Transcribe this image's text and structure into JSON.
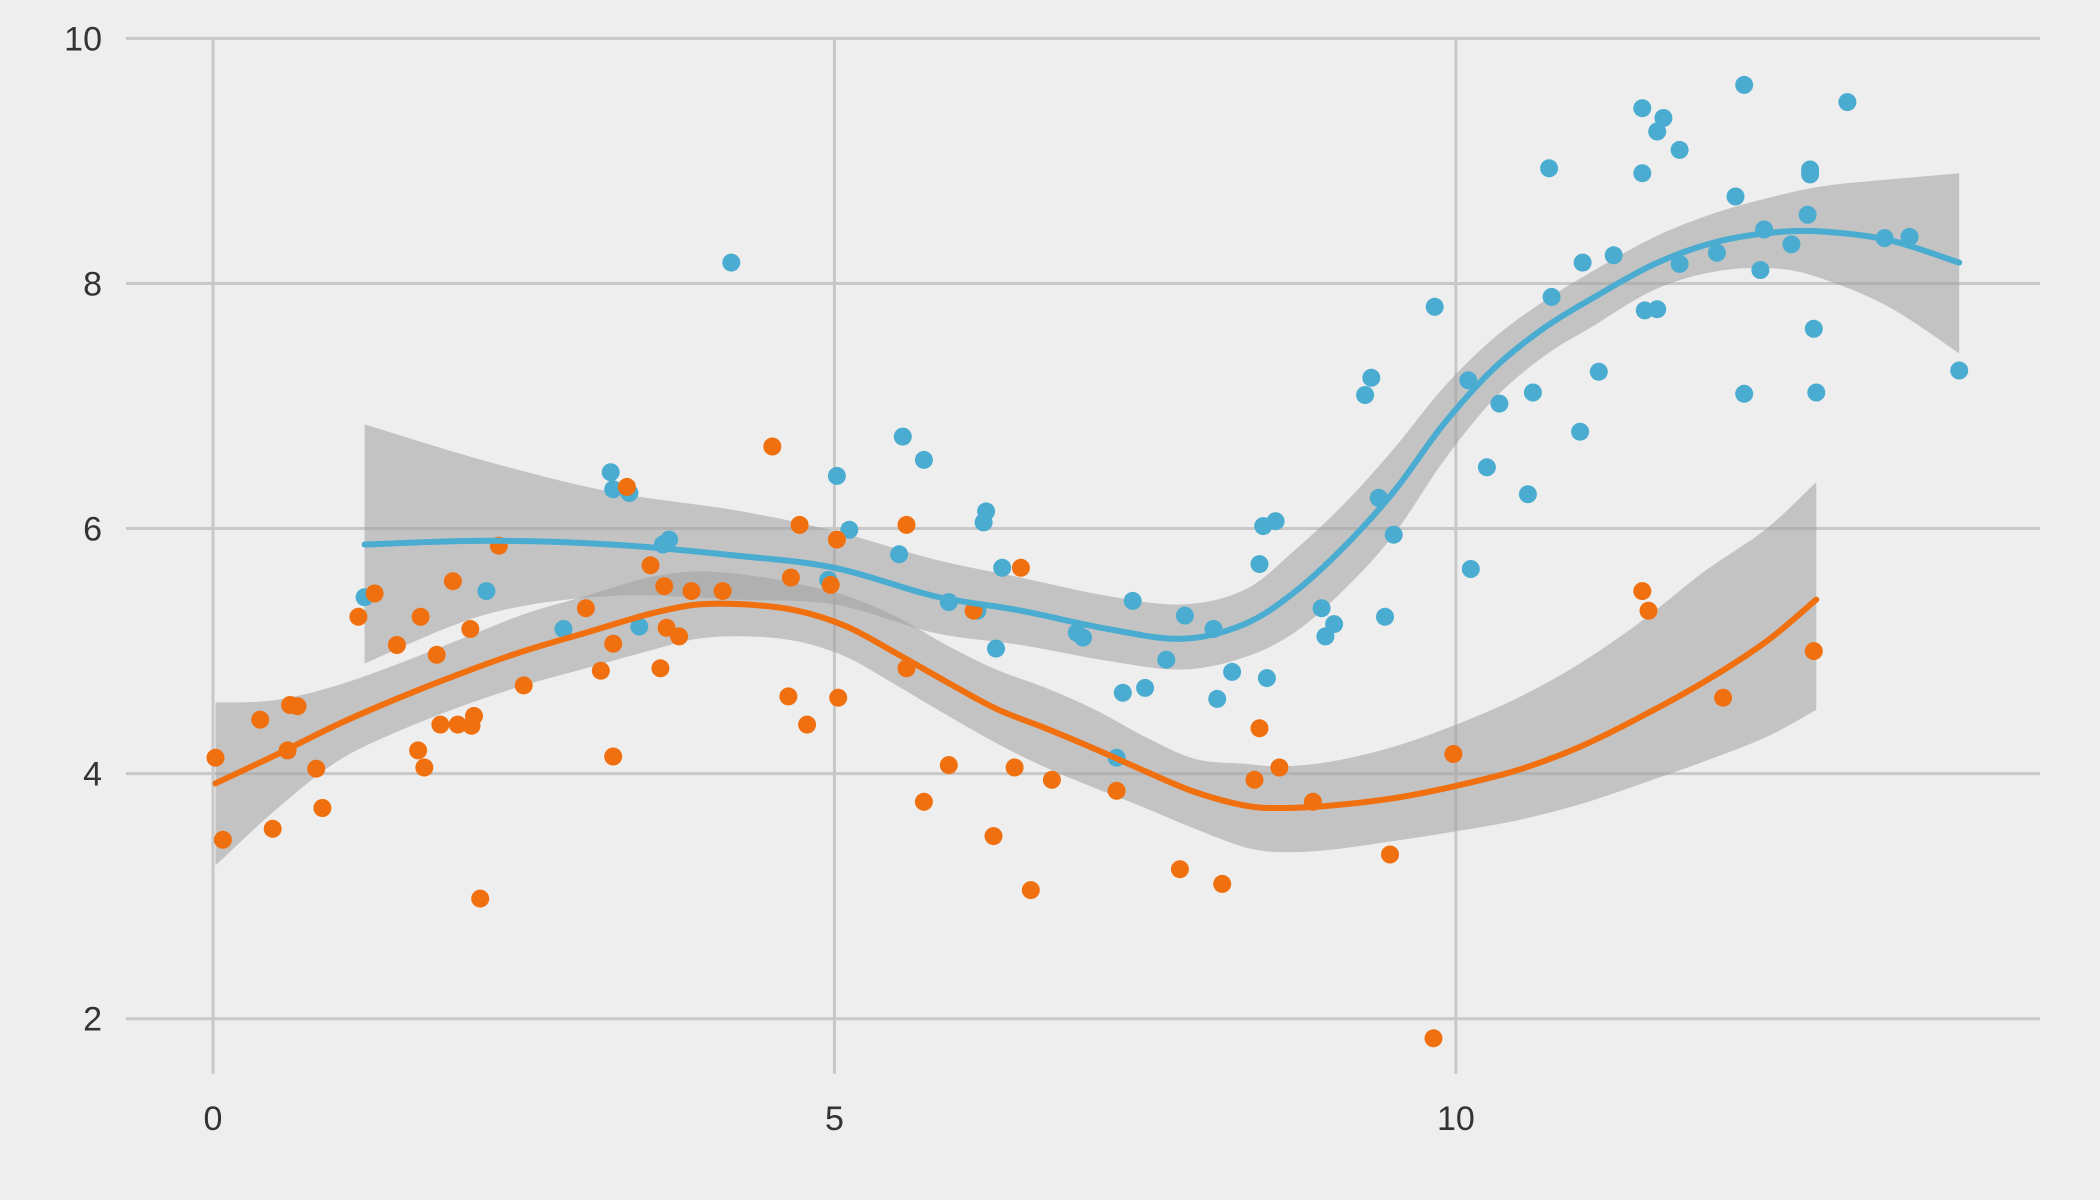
{
  "chart_data": {
    "type": "scatter",
    "title": "",
    "xlabel": "",
    "ylabel": "",
    "xlim": [
      -0.7,
      14.7
    ],
    "ylim": [
      1.5,
      10.15
    ],
    "xticks": [
      0,
      5,
      10
    ],
    "yticks": [
      2,
      4,
      6,
      8,
      10
    ],
    "xtick_labels": [
      "0",
      "5",
      "10"
    ],
    "ytick_labels": [
      "2",
      "4",
      "6",
      "8",
      "10"
    ],
    "grid": true,
    "legend": "none",
    "band_color": "#a0a0a0",
    "series": [
      {
        "color": "#4aacd0",
        "points": [
          [
            1.22,
            5.44
          ],
          [
            2.2,
            5.49
          ],
          [
            2.82,
            5.18
          ],
          [
            3.2,
            6.46
          ],
          [
            3.22,
            6.32
          ],
          [
            3.35,
            6.29
          ],
          [
            3.43,
            5.2
          ],
          [
            3.62,
            5.87
          ],
          [
            3.67,
            5.91
          ],
          [
            4.17,
            8.17
          ],
          [
            4.95,
            5.58
          ],
          [
            5.02,
            6.43
          ],
          [
            5.12,
            5.99
          ],
          [
            5.52,
            5.79
          ],
          [
            5.55,
            6.75
          ],
          [
            5.72,
            6.56
          ],
          [
            5.92,
            5.4
          ],
          [
            6.15,
            5.33
          ],
          [
            6.2,
            6.05
          ],
          [
            6.22,
            6.14
          ],
          [
            6.3,
            5.02
          ],
          [
            6.35,
            5.68
          ],
          [
            6.95,
            5.15
          ],
          [
            7.0,
            5.11
          ],
          [
            7.27,
            4.13
          ],
          [
            7.32,
            4.66
          ],
          [
            7.4,
            5.41
          ],
          [
            7.5,
            4.7
          ],
          [
            7.67,
            4.93
          ],
          [
            7.82,
            5.29
          ],
          [
            8.05,
            5.18
          ],
          [
            8.08,
            4.61
          ],
          [
            8.2,
            4.83
          ],
          [
            8.42,
            5.71
          ],
          [
            8.45,
            6.02
          ],
          [
            8.48,
            4.78
          ],
          [
            8.55,
            6.06
          ],
          [
            8.92,
            5.35
          ],
          [
            8.95,
            5.12
          ],
          [
            9.02,
            5.22
          ],
          [
            9.27,
            7.09
          ],
          [
            9.32,
            7.23
          ],
          [
            9.38,
            6.25
          ],
          [
            9.43,
            5.28
          ],
          [
            9.5,
            5.95
          ],
          [
            9.83,
            7.81
          ],
          [
            10.1,
            7.21
          ],
          [
            10.12,
            5.67
          ],
          [
            10.25,
            6.5
          ],
          [
            10.35,
            7.02
          ],
          [
            10.58,
            6.28
          ],
          [
            10.62,
            7.11
          ],
          [
            10.75,
            8.94
          ],
          [
            10.77,
            7.89
          ],
          [
            11.0,
            6.79
          ],
          [
            11.02,
            8.17
          ],
          [
            11.15,
            7.28
          ],
          [
            11.27,
            8.23
          ],
          [
            11.5,
            9.43
          ],
          [
            11.5,
            8.9
          ],
          [
            11.52,
            7.78
          ],
          [
            11.62,
            9.24
          ],
          [
            11.62,
            7.79
          ],
          [
            11.67,
            9.35
          ],
          [
            11.8,
            8.16
          ],
          [
            11.8,
            9.09
          ],
          [
            12.1,
            8.25
          ],
          [
            12.25,
            8.71
          ],
          [
            12.32,
            9.62
          ],
          [
            12.32,
            7.1
          ],
          [
            12.45,
            8.11
          ],
          [
            12.48,
            8.44
          ],
          [
            12.7,
            8.32
          ],
          [
            12.83,
            8.56
          ],
          [
            12.85,
            8.89
          ],
          [
            12.85,
            8.93
          ],
          [
            12.88,
            7.63
          ],
          [
            12.9,
            7.11
          ],
          [
            13.15,
            9.48
          ],
          [
            13.45,
            8.37
          ],
          [
            13.65,
            8.38
          ],
          [
            14.05,
            7.29
          ]
        ],
        "smooth": [
          [
            1.22,
            5.87
          ],
          [
            2.2,
            5.9
          ],
          [
            3.2,
            5.87
          ],
          [
            4.2,
            5.78
          ],
          [
            5.0,
            5.68
          ],
          [
            5.8,
            5.45
          ],
          [
            6.5,
            5.33
          ],
          [
            7.2,
            5.18
          ],
          [
            7.8,
            5.1
          ],
          [
            8.3,
            5.22
          ],
          [
            8.7,
            5.48
          ],
          [
            9.1,
            5.85
          ],
          [
            9.5,
            6.3
          ],
          [
            9.9,
            6.85
          ],
          [
            10.3,
            7.3
          ],
          [
            10.7,
            7.63
          ],
          [
            11.1,
            7.88
          ],
          [
            11.6,
            8.16
          ],
          [
            12.1,
            8.34
          ],
          [
            12.6,
            8.42
          ],
          [
            13.0,
            8.42
          ],
          [
            13.5,
            8.35
          ],
          [
            14.05,
            8.17
          ]
        ],
        "band_upper": [
          [
            1.22,
            6.85
          ],
          [
            2.2,
            6.55
          ],
          [
            3.2,
            6.3
          ],
          [
            4.2,
            6.15
          ],
          [
            5.0,
            5.98
          ],
          [
            5.8,
            5.75
          ],
          [
            6.5,
            5.6
          ],
          [
            7.2,
            5.45
          ],
          [
            7.8,
            5.38
          ],
          [
            8.3,
            5.5
          ],
          [
            8.7,
            5.82
          ],
          [
            9.1,
            6.2
          ],
          [
            9.5,
            6.65
          ],
          [
            9.9,
            7.15
          ],
          [
            10.3,
            7.55
          ],
          [
            10.7,
            7.85
          ],
          [
            11.1,
            8.1
          ],
          [
            11.6,
            8.38
          ],
          [
            12.1,
            8.58
          ],
          [
            12.6,
            8.72
          ],
          [
            13.0,
            8.8
          ],
          [
            13.5,
            8.85
          ],
          [
            14.05,
            8.9
          ]
        ],
        "band_lower": [
          [
            1.22,
            4.9
          ],
          [
            2.2,
            5.3
          ],
          [
            3.2,
            5.45
          ],
          [
            4.2,
            5.42
          ],
          [
            5.0,
            5.38
          ],
          [
            5.8,
            5.15
          ],
          [
            6.5,
            5.05
          ],
          [
            7.2,
            4.92
          ],
          [
            7.8,
            4.85
          ],
          [
            8.3,
            4.95
          ],
          [
            8.7,
            5.15
          ],
          [
            9.1,
            5.5
          ],
          [
            9.5,
            5.95
          ],
          [
            9.9,
            6.55
          ],
          [
            10.3,
            7.05
          ],
          [
            10.7,
            7.4
          ],
          [
            11.1,
            7.65
          ],
          [
            11.6,
            7.95
          ],
          [
            12.1,
            8.1
          ],
          [
            12.6,
            8.12
          ],
          [
            13.0,
            8.02
          ],
          [
            13.5,
            7.8
          ],
          [
            14.05,
            7.43
          ]
        ]
      },
      {
        "color": "#f0700f",
        "points": [
          [
            0.02,
            4.13
          ],
          [
            0.08,
            3.46
          ],
          [
            0.38,
            4.44
          ],
          [
            0.48,
            3.55
          ],
          [
            0.6,
            4.19
          ],
          [
            0.62,
            4.56
          ],
          [
            0.68,
            4.55
          ],
          [
            0.83,
            4.04
          ],
          [
            0.88,
            3.72
          ],
          [
            1.17,
            5.28
          ],
          [
            1.3,
            5.47
          ],
          [
            1.48,
            5.05
          ],
          [
            1.65,
            4.19
          ],
          [
            1.67,
            5.28
          ],
          [
            1.7,
            4.05
          ],
          [
            1.8,
            4.97
          ],
          [
            1.83,
            4.4
          ],
          [
            1.93,
            5.57
          ],
          [
            1.97,
            4.4
          ],
          [
            2.07,
            5.18
          ],
          [
            2.08,
            4.39
          ],
          [
            2.1,
            4.47
          ],
          [
            2.15,
            2.98
          ],
          [
            2.3,
            5.86
          ],
          [
            2.5,
            4.72
          ],
          [
            3.0,
            5.35
          ],
          [
            3.12,
            4.84
          ],
          [
            3.22,
            4.14
          ],
          [
            3.22,
            5.06
          ],
          [
            3.33,
            6.34
          ],
          [
            3.52,
            5.7
          ],
          [
            3.6,
            4.86
          ],
          [
            3.63,
            5.53
          ],
          [
            3.65,
            5.19
          ],
          [
            3.75,
            5.12
          ],
          [
            3.85,
            5.49
          ],
          [
            4.1,
            5.49
          ],
          [
            4.5,
            6.67
          ],
          [
            4.63,
            4.63
          ],
          [
            4.65,
            5.6
          ],
          [
            4.72,
            6.03
          ],
          [
            4.78,
            4.4
          ],
          [
            4.97,
            5.54
          ],
          [
            5.02,
            5.91
          ],
          [
            5.03,
            4.62
          ],
          [
            5.58,
            4.86
          ],
          [
            5.58,
            6.03
          ],
          [
            5.72,
            3.77
          ],
          [
            5.92,
            4.07
          ],
          [
            6.12,
            5.33
          ],
          [
            6.28,
            3.49
          ],
          [
            6.45,
            4.05
          ],
          [
            6.5,
            5.68
          ],
          [
            6.58,
            3.05
          ],
          [
            6.75,
            3.95
          ],
          [
            7.27,
            3.86
          ],
          [
            7.78,
            3.22
          ],
          [
            8.12,
            3.1
          ],
          [
            8.38,
            3.95
          ],
          [
            8.42,
            4.37
          ],
          [
            8.58,
            4.05
          ],
          [
            8.85,
            3.77
          ],
          [
            9.47,
            3.34
          ],
          [
            9.82,
            1.84
          ],
          [
            9.98,
            4.16
          ],
          [
            11.5,
            5.49
          ],
          [
            11.55,
            5.33
          ],
          [
            12.15,
            4.62
          ],
          [
            12.88,
            5.0
          ]
        ],
        "smooth": [
          [
            0.02,
            3.92
          ],
          [
            0.5,
            4.15
          ],
          [
            1.0,
            4.4
          ],
          [
            1.5,
            4.62
          ],
          [
            2.0,
            4.82
          ],
          [
            2.5,
            5.0
          ],
          [
            3.0,
            5.15
          ],
          [
            3.5,
            5.3
          ],
          [
            3.9,
            5.38
          ],
          [
            4.3,
            5.38
          ],
          [
            4.7,
            5.33
          ],
          [
            5.1,
            5.2
          ],
          [
            5.5,
            4.98
          ],
          [
            5.9,
            4.75
          ],
          [
            6.3,
            4.53
          ],
          [
            6.7,
            4.37
          ],
          [
            7.1,
            4.2
          ],
          [
            7.5,
            4.02
          ],
          [
            7.9,
            3.85
          ],
          [
            8.3,
            3.74
          ],
          [
            8.6,
            3.72
          ],
          [
            9.0,
            3.74
          ],
          [
            9.5,
            3.8
          ],
          [
            10.0,
            3.9
          ],
          [
            10.5,
            4.03
          ],
          [
            11.0,
            4.22
          ],
          [
            11.5,
            4.47
          ],
          [
            12.0,
            4.75
          ],
          [
            12.5,
            5.08
          ],
          [
            12.9,
            5.42
          ]
        ],
        "band_upper": [
          [
            0.02,
            4.58
          ],
          [
            0.5,
            4.6
          ],
          [
            1.0,
            4.72
          ],
          [
            1.5,
            4.9
          ],
          [
            2.0,
            5.1
          ],
          [
            2.5,
            5.3
          ],
          [
            3.0,
            5.45
          ],
          [
            3.5,
            5.6
          ],
          [
            3.9,
            5.65
          ],
          [
            4.3,
            5.62
          ],
          [
            4.7,
            5.55
          ],
          [
            5.1,
            5.45
          ],
          [
            5.5,
            5.28
          ],
          [
            5.9,
            5.05
          ],
          [
            6.3,
            4.85
          ],
          [
            6.7,
            4.7
          ],
          [
            7.1,
            4.52
          ],
          [
            7.5,
            4.3
          ],
          [
            7.9,
            4.12
          ],
          [
            8.3,
            4.08
          ],
          [
            8.6,
            4.06
          ],
          [
            9.0,
            4.1
          ],
          [
            9.5,
            4.22
          ],
          [
            10.0,
            4.4
          ],
          [
            10.5,
            4.62
          ],
          [
            11.0,
            4.9
          ],
          [
            11.5,
            5.25
          ],
          [
            12.0,
            5.65
          ],
          [
            12.5,
            6.0
          ],
          [
            12.9,
            6.38
          ]
        ],
        "band_lower": [
          [
            0.02,
            3.25
          ],
          [
            0.5,
            3.7
          ],
          [
            1.0,
            4.1
          ],
          [
            1.5,
            4.35
          ],
          [
            2.0,
            4.55
          ],
          [
            2.5,
            4.72
          ],
          [
            3.0,
            4.86
          ],
          [
            3.5,
            5.0
          ],
          [
            3.9,
            5.1
          ],
          [
            4.3,
            5.12
          ],
          [
            4.7,
            5.08
          ],
          [
            5.1,
            4.95
          ],
          [
            5.5,
            4.72
          ],
          [
            5.9,
            4.48
          ],
          [
            6.3,
            4.25
          ],
          [
            6.7,
            4.05
          ],
          [
            7.1,
            3.88
          ],
          [
            7.5,
            3.72
          ],
          [
            7.9,
            3.55
          ],
          [
            8.3,
            3.4
          ],
          [
            8.6,
            3.36
          ],
          [
            9.0,
            3.38
          ],
          [
            9.5,
            3.45
          ],
          [
            10.0,
            3.53
          ],
          [
            10.5,
            3.62
          ],
          [
            11.0,
            3.75
          ],
          [
            11.5,
            3.92
          ],
          [
            12.0,
            4.1
          ],
          [
            12.5,
            4.3
          ],
          [
            12.9,
            4.52
          ]
        ]
      }
    ]
  }
}
